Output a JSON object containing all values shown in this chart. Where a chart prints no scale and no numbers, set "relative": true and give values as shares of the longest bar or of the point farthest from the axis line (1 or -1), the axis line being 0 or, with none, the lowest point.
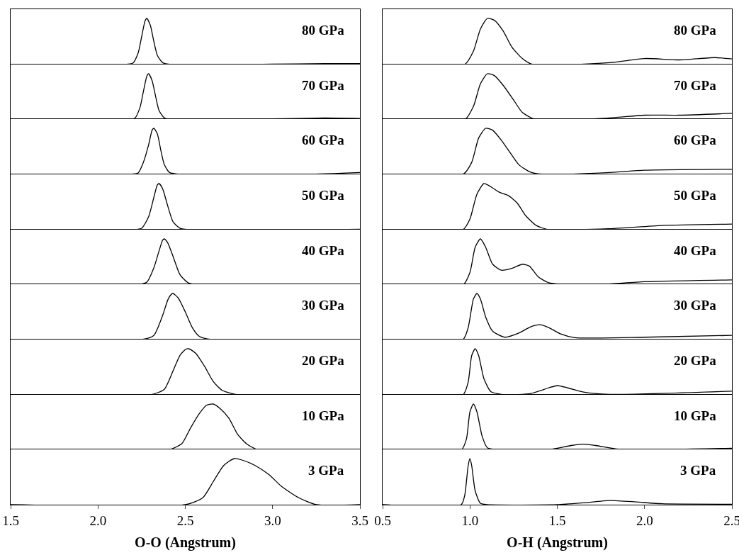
{
  "chart_data": [
    {
      "type": "line",
      "relative": true,
      "annotations": [
        "80 GPa"
      ],
      "xlim": [
        1.5,
        3.5
      ],
      "tick_labels": false,
      "grid": false,
      "legend": false,
      "marker": "none",
      "line_style": "solid",
      "series": [
        {
          "color": "#000000",
          "x": [
            1.5,
            2.15,
            2.2,
            2.23,
            2.25,
            2.27,
            2.28,
            2.3,
            2.32,
            2.34,
            2.37,
            2.42,
            3.0,
            3.3,
            3.5
          ],
          "values": [
            0,
            0,
            0.03,
            0.25,
            0.6,
            0.95,
            1,
            0.85,
            0.5,
            0.2,
            0.04,
            0,
            0.01,
            0.02,
            0.02
          ]
        }
      ]
    },
    {
      "type": "line",
      "relative": true,
      "annotations": [
        "80 GPa"
      ],
      "xlim": [
        0.5,
        2.5
      ],
      "tick_labels": false,
      "grid": false,
      "legend": false,
      "marker": "none",
      "line_style": "solid",
      "series": [
        {
          "color": "#000000",
          "x": [
            0.5,
            0.97,
            1.02,
            1.06,
            1.1,
            1.14,
            1.19,
            1.24,
            1.3,
            1.36,
            1.8,
            2.0,
            2.2,
            2.4,
            2.5
          ],
          "values": [
            0,
            0,
            0.29,
            0.77,
            1,
            0.96,
            0.73,
            0.38,
            0.13,
            0,
            0.04,
            0.13,
            0.1,
            0.15,
            0.12
          ]
        }
      ]
    },
    {
      "type": "line",
      "relative": true,
      "annotations": [
        "70 GPa"
      ],
      "xlim": [
        1.5,
        3.5
      ],
      "tick_labels": false,
      "grid": false,
      "legend": false,
      "marker": "none",
      "line_style": "solid",
      "series": [
        {
          "color": "#000000",
          "x": [
            1.5,
            2.16,
            2.21,
            2.24,
            2.26,
            2.28,
            2.29,
            2.31,
            2.33,
            2.35,
            2.38,
            2.43,
            3.0,
            3.3,
            3.5
          ],
          "values": [
            0,
            0,
            0.03,
            0.26,
            0.61,
            0.95,
            1,
            0.85,
            0.51,
            0.2,
            0.04,
            0,
            0.02,
            0.04,
            0.03
          ]
        }
      ]
    },
    {
      "type": "line",
      "relative": true,
      "annotations": [
        "70 GPa"
      ],
      "xlim": [
        0.5,
        2.5
      ],
      "tick_labels": false,
      "grid": false,
      "legend": false,
      "marker": "none",
      "line_style": "solid",
      "series": [
        {
          "color": "#000000",
          "x": [
            0.5,
            0.97,
            1.02,
            1.06,
            1.1,
            1.14,
            1.19,
            1.25,
            1.3,
            1.38,
            1.8,
            2.0,
            2.2,
            2.5
          ],
          "values": [
            0,
            0,
            0.29,
            0.78,
            1,
            0.96,
            0.75,
            0.43,
            0.16,
            0,
            0.04,
            0.1,
            0.1,
            0.14
          ]
        }
      ]
    },
    {
      "type": "line",
      "relative": true,
      "annotations": [
        "60 GPa"
      ],
      "xlim": [
        1.5,
        3.5
      ],
      "tick_labels": false,
      "grid": false,
      "legend": false,
      "marker": "none",
      "line_style": "solid",
      "series": [
        {
          "color": "#000000",
          "x": [
            1.5,
            2.18,
            2.23,
            2.26,
            2.29,
            2.31,
            2.32,
            2.34,
            2.36,
            2.38,
            2.41,
            2.47,
            3.2,
            3.5
          ],
          "values": [
            0,
            0,
            0.03,
            0.26,
            0.64,
            0.96,
            1,
            0.88,
            0.52,
            0.21,
            0.04,
            0,
            0,
            0.04
          ]
        }
      ]
    },
    {
      "type": "line",
      "relative": true,
      "annotations": [
        "60 GPa"
      ],
      "xlim": [
        0.5,
        2.5
      ],
      "tick_labels": false,
      "grid": false,
      "legend": false,
      "marker": "none",
      "line_style": "solid",
      "series": [
        {
          "color": "#000000",
          "x": [
            0.5,
            0.96,
            1.01,
            1.05,
            1.09,
            1.13,
            1.18,
            1.23,
            1.28,
            1.34,
            1.42,
            1.8,
            2.0,
            2.5
          ],
          "values": [
            0,
            0,
            0.26,
            0.79,
            1,
            0.96,
            0.74,
            0.47,
            0.21,
            0.06,
            0,
            0.04,
            0.09,
            0.11
          ]
        }
      ]
    },
    {
      "type": "line",
      "relative": true,
      "annotations": [
        "50 GPa"
      ],
      "xlim": [
        1.5,
        3.5
      ],
      "tick_labels": false,
      "grid": false,
      "legend": false,
      "marker": "none",
      "line_style": "solid",
      "series": [
        {
          "color": "#000000",
          "x": [
            1.5,
            2.2,
            2.25,
            2.29,
            2.32,
            2.34,
            2.35,
            2.37,
            2.4,
            2.43,
            2.47,
            2.53,
            3.5
          ],
          "values": [
            0,
            0,
            0.03,
            0.28,
            0.7,
            0.97,
            1,
            0.89,
            0.51,
            0.17,
            0.03,
            0,
            0.01
          ]
        }
      ]
    },
    {
      "type": "line",
      "relative": true,
      "annotations": [
        "50 GPa"
      ],
      "xlim": [
        0.5,
        2.5
      ],
      "tick_labels": false,
      "grid": false,
      "legend": false,
      "marker": "none",
      "line_style": "solid",
      "series": [
        {
          "color": "#000000",
          "x": [
            0.5,
            0.96,
            1.0,
            1.04,
            1.08,
            1.12,
            1.17,
            1.22,
            1.27,
            1.32,
            1.38,
            1.45,
            1.8,
            2.1,
            2.5
          ],
          "values": [
            0,
            0,
            0.23,
            0.77,
            1,
            0.93,
            0.81,
            0.74,
            0.58,
            0.3,
            0.09,
            0,
            0.02,
            0.09,
            0.12
          ]
        }
      ]
    },
    {
      "type": "line",
      "relative": true,
      "annotations": [
        "40 GPa"
      ],
      "xlim": [
        1.5,
        3.5
      ],
      "tick_labels": false,
      "grid": false,
      "legend": false,
      "marker": "none",
      "line_style": "solid",
      "series": [
        {
          "color": "#000000",
          "x": [
            1.5,
            2.22,
            2.28,
            2.32,
            2.35,
            2.37,
            2.38,
            2.4,
            2.43,
            2.47,
            2.52,
            2.6,
            3.5
          ],
          "values": [
            0,
            0,
            0.06,
            0.37,
            0.74,
            0.97,
            1,
            0.91,
            0.62,
            0.22,
            0.04,
            0,
            0.01
          ]
        }
      ]
    },
    {
      "type": "line",
      "relative": true,
      "annotations": [
        "40 GPa"
      ],
      "xlim": [
        0.5,
        2.5
      ],
      "tick_labels": false,
      "grid": false,
      "legend": false,
      "marker": "none",
      "line_style": "solid",
      "series": [
        {
          "color": "#000000",
          "x": [
            0.5,
            0.96,
            1.0,
            1.03,
            1.06,
            1.09,
            1.13,
            1.18,
            1.24,
            1.3,
            1.34,
            1.39,
            1.45,
            1.7,
            2.0,
            2.5
          ],
          "values": [
            0,
            0,
            0.27,
            0.82,
            1,
            0.82,
            0.45,
            0.32,
            0.36,
            0.45,
            0.41,
            0.18,
            0.05,
            0,
            0.07,
            0.11
          ]
        }
      ]
    },
    {
      "type": "line",
      "relative": true,
      "annotations": [
        "30 GPa"
      ],
      "xlim": [
        1.5,
        3.5
      ],
      "tick_labels": false,
      "grid": false,
      "legend": false,
      "marker": "none",
      "line_style": "solid",
      "series": [
        {
          "color": "#000000",
          "x": [
            1.5,
            2.25,
            2.32,
            2.37,
            2.4,
            2.42,
            2.43,
            2.46,
            2.5,
            2.54,
            2.58,
            2.65,
            3.5
          ],
          "values": [
            0,
            0,
            0.09,
            0.52,
            0.86,
            0.98,
            1,
            0.9,
            0.6,
            0.26,
            0.07,
            0,
            0
          ]
        }
      ]
    },
    {
      "type": "line",
      "relative": true,
      "annotations": [
        "30 GPa"
      ],
      "xlim": [
        0.5,
        2.5
      ],
      "tick_labels": false,
      "grid": false,
      "legend": false,
      "marker": "none",
      "line_style": "solid",
      "series": [
        {
          "color": "#000000",
          "x": [
            0.5,
            0.96,
            0.99,
            1.02,
            1.04,
            1.06,
            1.09,
            1.13,
            1.2,
            1.28,
            1.35,
            1.4,
            1.45,
            1.52,
            1.6,
            2.0,
            2.5
          ],
          "values": [
            0,
            0,
            0.26,
            0.88,
            1,
            0.88,
            0.49,
            0.18,
            0.05,
            0.14,
            0.28,
            0.32,
            0.26,
            0.12,
            0.04,
            0.05,
            0.09
          ]
        }
      ]
    },
    {
      "type": "line",
      "relative": true,
      "annotations": [
        "20 GPa"
      ],
      "xlim": [
        1.5,
        3.5
      ],
      "tick_labels": false,
      "grid": false,
      "legend": false,
      "marker": "none",
      "line_style": "solid",
      "series": [
        {
          "color": "#000000",
          "x": [
            1.5,
            2.3,
            2.38,
            2.43,
            2.47,
            2.5,
            2.52,
            2.56,
            2.61,
            2.66,
            2.71,
            2.8,
            3.5
          ],
          "values": [
            0,
            0,
            0.12,
            0.52,
            0.86,
            0.98,
            1,
            0.9,
            0.62,
            0.29,
            0.1,
            0,
            0
          ]
        }
      ]
    },
    {
      "type": "line",
      "relative": true,
      "annotations": [
        "20 GPa"
      ],
      "xlim": [
        0.5,
        2.5
      ],
      "tick_labels": false,
      "grid": false,
      "legend": false,
      "marker": "none",
      "line_style": "solid",
      "series": [
        {
          "color": "#000000",
          "x": [
            0.5,
            0.96,
            0.99,
            1.01,
            1.03,
            1.05,
            1.08,
            1.12,
            1.2,
            1.35,
            1.45,
            1.5,
            1.56,
            1.65,
            1.8,
            2.5
          ],
          "values": [
            0,
            0,
            0.28,
            0.85,
            1,
            0.85,
            0.35,
            0.07,
            0,
            0.03,
            0.15,
            0.2,
            0.15,
            0.06,
            0.01,
            0.08
          ]
        }
      ]
    },
    {
      "type": "line",
      "relative": true,
      "annotations": [
        "10 GPa"
      ],
      "xlim": [
        1.5,
        3.5
      ],
      "tick_labels": false,
      "grid": false,
      "legend": false,
      "marker": "none",
      "line_style": "solid",
      "series": [
        {
          "color": "#000000",
          "x": [
            1.5,
            2.4,
            2.48,
            2.53,
            2.58,
            2.62,
            2.66,
            2.7,
            2.75,
            2.8,
            2.85,
            2.92,
            3.5
          ],
          "values": [
            0,
            0,
            0.14,
            0.48,
            0.79,
            0.97,
            1,
            0.9,
            0.69,
            0.34,
            0.14,
            0,
            0
          ]
        }
      ]
    },
    {
      "type": "line",
      "relative": true,
      "annotations": [
        "10 GPa"
      ],
      "xlim": [
        0.5,
        2.5
      ],
      "tick_labels": false,
      "grid": false,
      "legend": false,
      "marker": "none",
      "line_style": "solid",
      "series": [
        {
          "color": "#000000",
          "x": [
            0.5,
            0.95,
            0.98,
            1.0,
            1.02,
            1.04,
            1.07,
            1.1,
            1.2,
            1.45,
            1.58,
            1.65,
            1.72,
            1.85,
            2.0,
            2.5
          ],
          "values": [
            0,
            0,
            0.24,
            0.83,
            1,
            0.83,
            0.3,
            0.05,
            0,
            0.01,
            0.1,
            0.13,
            0.1,
            0.02,
            0.01,
            0.04
          ]
        }
      ]
    },
    {
      "type": "line",
      "relative": true,
      "annotations": [
        "3 GPa"
      ],
      "xlabel": "O-O (Angstrum)",
      "xlim": [
        1.5,
        3.5
      ],
      "xticks": [
        {
          "value": 1.5,
          "label": "1.5"
        },
        {
          "value": 2,
          "label": "2.0"
        },
        {
          "value": 2.5,
          "label": "2.5"
        },
        {
          "value": 3,
          "label": "3.0"
        },
        {
          "value": 3.5,
          "label": "3.5"
        }
      ],
      "tick_labels": "x",
      "grid": false,
      "legend": false,
      "marker": "none",
      "line_style": "solid",
      "series": [
        {
          "color": "#000000",
          "x": [
            1.5,
            2.5,
            2.6,
            2.66,
            2.72,
            2.78,
            2.84,
            2.9,
            2.98,
            3.05,
            3.15,
            3.25,
            3.5
          ],
          "values": [
            0,
            0,
            0.15,
            0.5,
            0.85,
            1,
            0.95,
            0.85,
            0.65,
            0.4,
            0.15,
            0,
            0
          ]
        }
      ]
    },
    {
      "type": "line",
      "relative": true,
      "annotations": [
        "3 GPa"
      ],
      "xlabel": "O-H (Angstrum)",
      "xlim": [
        0.5,
        2.5
      ],
      "xticks": [
        {
          "value": 0.5,
          "label": "0.5"
        },
        {
          "value": 1,
          "label": "1.0"
        },
        {
          "value": 1.5,
          "label": "1.5"
        },
        {
          "value": 2,
          "label": "2.0"
        },
        {
          "value": 2.5,
          "label": "2.5"
        }
      ],
      "tick_labels": "x",
      "grid": false,
      "legend": false,
      "marker": "none",
      "line_style": "solid",
      "series": [
        {
          "color": "#000000",
          "x": [
            0.5,
            0.95,
            0.97,
            0.99,
            1.0,
            1.01,
            1.03,
            1.06,
            1.1,
            1.5,
            1.65,
            1.8,
            1.95,
            2.1,
            2.5
          ],
          "values": [
            0,
            0,
            0.2,
            0.85,
            1,
            0.85,
            0.3,
            0.03,
            0,
            0,
            0.04,
            0.09,
            0.06,
            0.02,
            0.01
          ]
        }
      ]
    }
  ]
}
